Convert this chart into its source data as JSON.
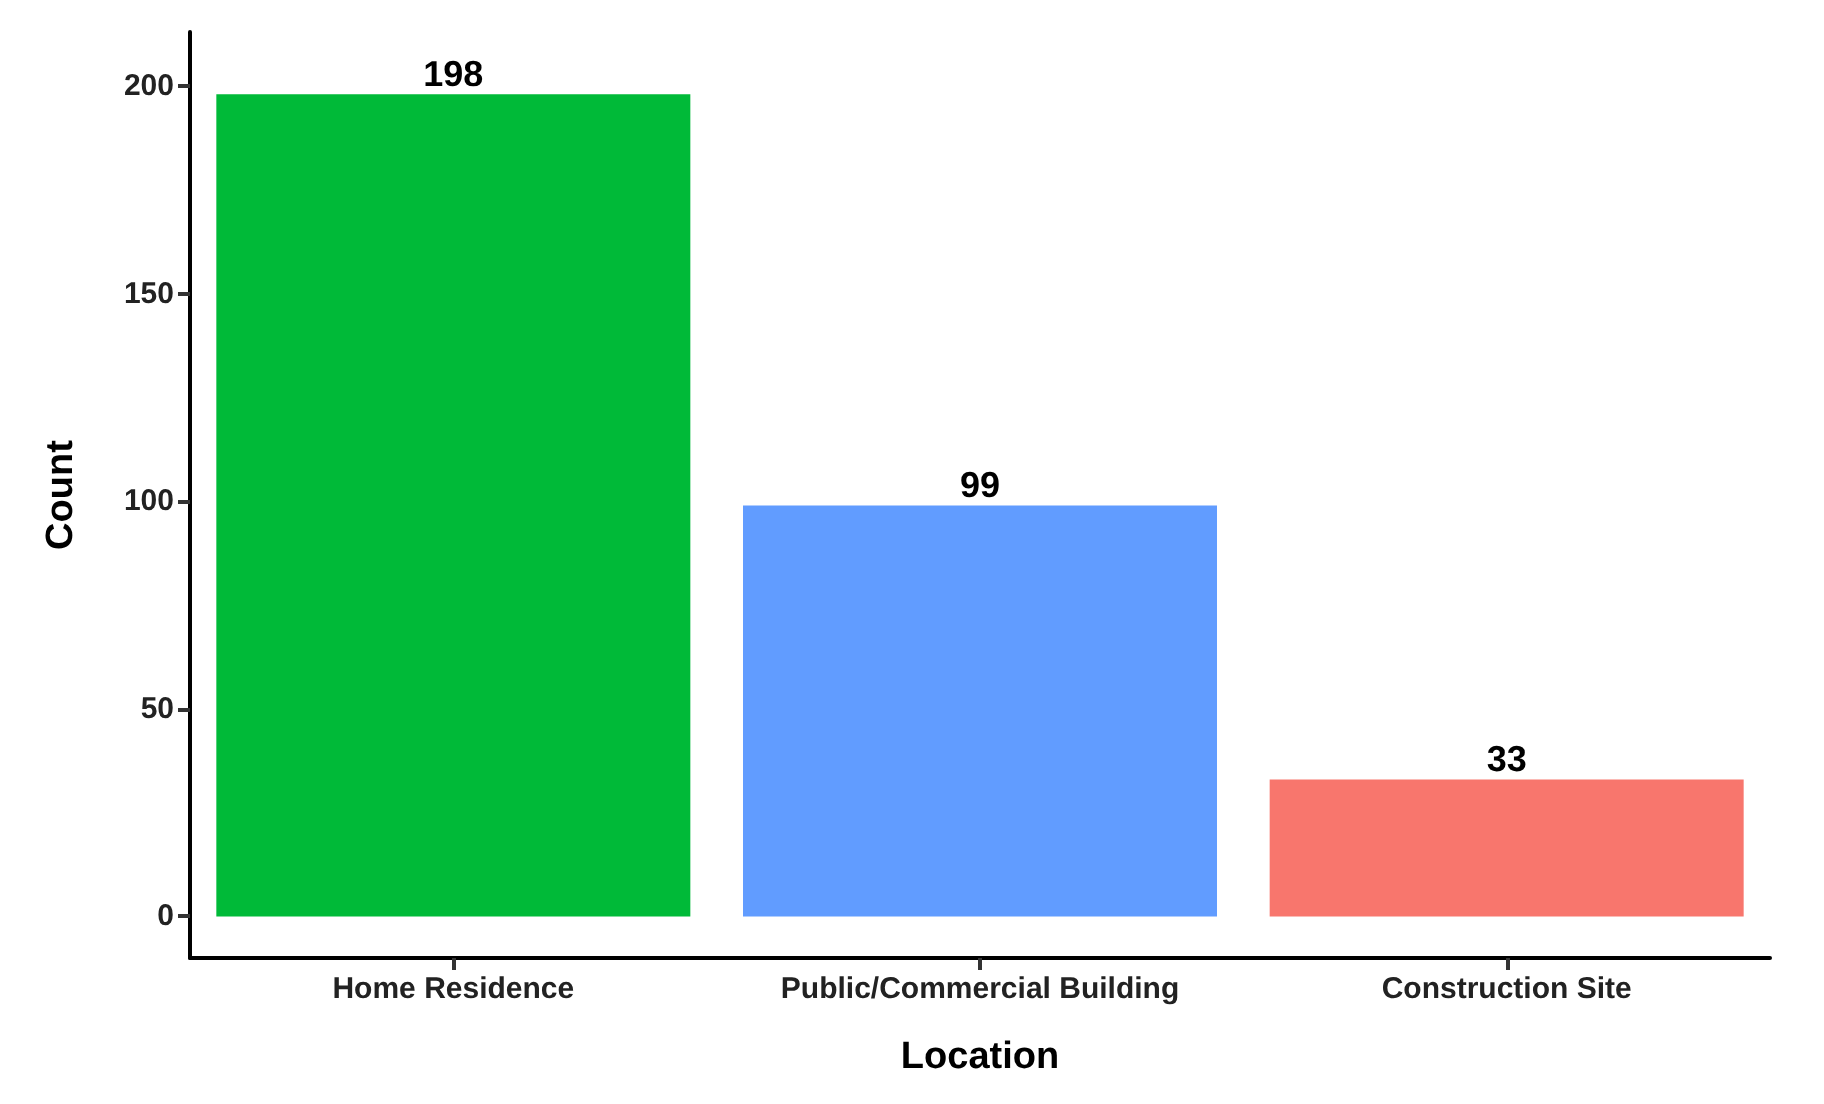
{
  "chart_data": {
    "type": "bar",
    "xlabel": "Location",
    "ylabel": "Count",
    "categories": [
      "Home Residence",
      "Public/Commercial Building",
      "Construction Site"
    ],
    "values": [
      198,
      99,
      33
    ],
    "colors": [
      "#00ba38",
      "#619cff",
      "#f8766d"
    ],
    "ylim": [
      -10,
      213
    ],
    "yticks": [
      0,
      50,
      100,
      150,
      200
    ],
    "data_labels": true,
    "grid": false
  }
}
